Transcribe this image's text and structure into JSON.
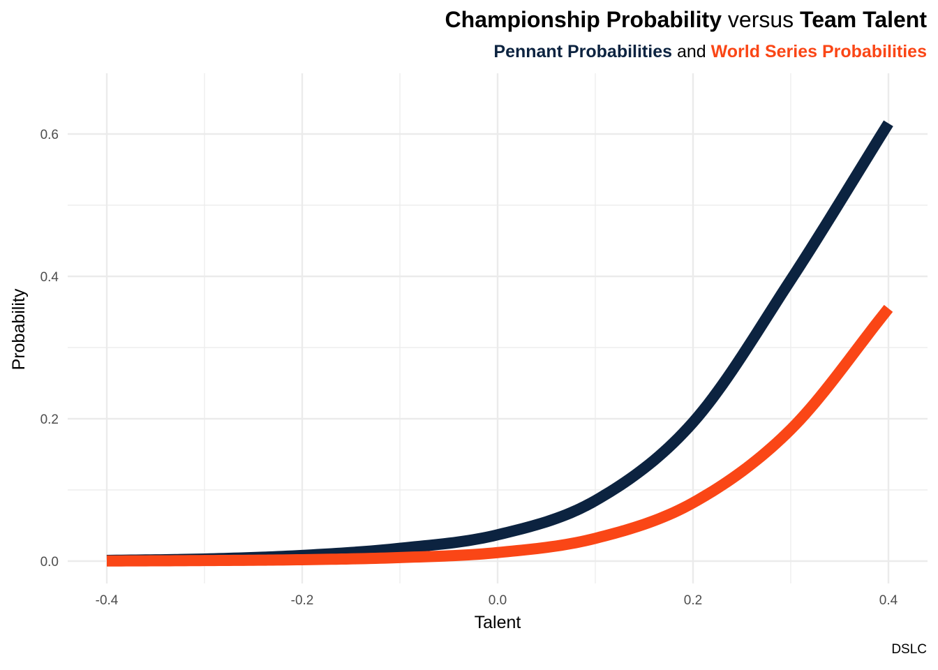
{
  "title": {
    "part1": "Championship Probability",
    "part2": "versus",
    "part3": "Team Talent"
  },
  "subtitle": {
    "part1": "Pennant Probabilities",
    "part2": "and",
    "part3": "World Series Probabilities"
  },
  "caption": "DSLC",
  "colors": {
    "pennant": "#0c2340",
    "world_series": "#fa4616",
    "grid": "#ebebeb",
    "tick_text": "#4d4d4d"
  },
  "chart_data": {
    "type": "line",
    "xlabel": "Talent",
    "ylabel": "Probability",
    "xlim": [
      -0.4,
      0.4
    ],
    "ylim": [
      0,
      0.6
    ],
    "x_ticks": [
      -0.4,
      -0.2,
      0.0,
      0.2,
      0.4
    ],
    "x_tick_labels": [
      "-0.4",
      "-0.2",
      "0.0",
      "0.2",
      "0.4"
    ],
    "y_ticks": [
      0.0,
      0.2,
      0.4,
      0.6
    ],
    "y_tick_labels": [
      "0.0",
      "0.2",
      "0.4",
      "0.6"
    ],
    "grid": true,
    "legend": "none",
    "x": [
      -0.4,
      -0.3,
      -0.2,
      -0.1,
      0.0,
      0.1,
      0.2,
      0.3,
      0.4
    ],
    "series": [
      {
        "color": "#0c2340",
        "values": [
          0.001,
          0.003,
          0.008,
          0.018,
          0.037,
          0.085,
          0.195,
          0.395,
          0.615
        ]
      },
      {
        "color": "#fa4616",
        "values": [
          0.0002,
          0.0008,
          0.002,
          0.005,
          0.012,
          0.032,
          0.082,
          0.185,
          0.355
        ]
      }
    ]
  }
}
